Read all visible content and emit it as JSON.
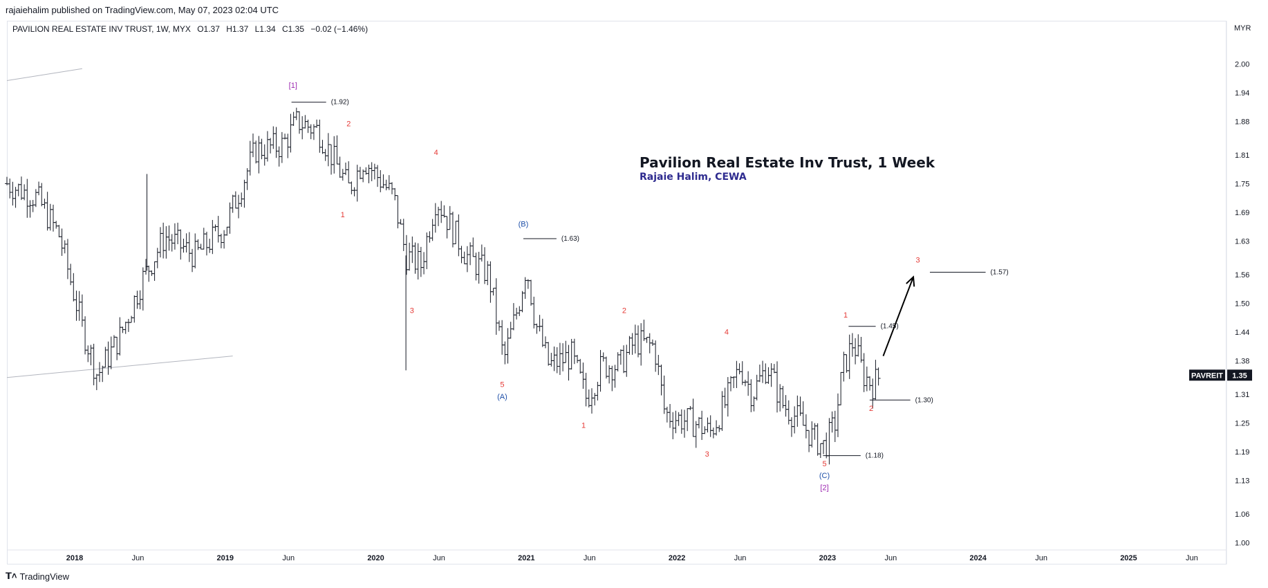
{
  "header": {
    "publish_line": "rajaiehalim published on TradingView.com, May 07, 2023 02:04 UTC"
  },
  "symbol_bar": {
    "name": "PAVILION REAL ESTATE INV TRUST, 1W, MYX",
    "open": "O1.37",
    "high": "H1.37",
    "low": "L1.34",
    "close": "C1.35",
    "change": "−0.02 (−1.46%)"
  },
  "currency": "MYR",
  "footer": {
    "brand": "TradingView",
    "logo_icon": "tradingview-logo-icon"
  },
  "chart_data": {
    "type": "ohlc",
    "title": "Pavilion Real Estate Inv Trust, 1 Week",
    "subtitle": "Rajaie Halim, CEWA",
    "colors": {
      "bars": "#131722",
      "title": "#131722",
      "subtitle": "#2e2b8f",
      "wave_red": "#e53935",
      "wave_blue": "#1e4fa8",
      "wave_purple": "#9c27b0",
      "price_tag_bg": "#131722",
      "trendline": "#b2b5be"
    },
    "y_axis": {
      "ticks": [
        "2.00",
        "1.94",
        "1.88",
        "1.81",
        "1.75",
        "1.69",
        "1.63",
        "1.56",
        "1.50",
        "1.44",
        "1.38",
        "1.31",
        "1.25",
        "1.19",
        "1.13",
        "1.06",
        "1.00"
      ],
      "range": [
        0.985,
        2.09
      ],
      "position": "right"
    },
    "x_axis": {
      "ticks": [
        {
          "label": "2018",
          "t": 2018.0,
          "bold": true
        },
        {
          "label": "Jun",
          "t": 2018.42,
          "bold": false
        },
        {
          "label": "2019",
          "t": 2019.0,
          "bold": true
        },
        {
          "label": "Jun",
          "t": 2019.42,
          "bold": false
        },
        {
          "label": "2020",
          "t": 2020.0,
          "bold": true
        },
        {
          "label": "Jun",
          "t": 2020.42,
          "bold": false
        },
        {
          "label": "2021",
          "t": 2021.0,
          "bold": true
        },
        {
          "label": "Jun",
          "t": 2021.42,
          "bold": false
        },
        {
          "label": "2022",
          "t": 2022.0,
          "bold": true
        },
        {
          "label": "Jun",
          "t": 2022.42,
          "bold": false
        },
        {
          "label": "2023",
          "t": 2023.0,
          "bold": true
        },
        {
          "label": "Jun",
          "t": 2023.42,
          "bold": false
        },
        {
          "label": "2024",
          "t": 2024.0,
          "bold": true
        },
        {
          "label": "Jun",
          "t": 2024.42,
          "bold": false
        },
        {
          "label": "2025",
          "t": 2025.0,
          "bold": true
        },
        {
          "label": "Jun",
          "t": 2025.42,
          "bold": false
        }
      ],
      "range": [
        2017.55,
        2025.65
      ]
    },
    "price_tag": {
      "symbol": "PAVREIT",
      "value": "1.35",
      "price": 1.35
    },
    "anchors": [
      {
        "t": 2017.55,
        "p": 1.75
      },
      {
        "t": 2017.75,
        "p": 1.72
      },
      {
        "t": 2017.9,
        "p": 1.64
      },
      {
        "t": 2018.05,
        "p": 1.45
      },
      {
        "t": 2018.15,
        "p": 1.35
      },
      {
        "t": 2018.3,
        "p": 1.43
      },
      {
        "t": 2018.45,
        "p": 1.55
      },
      {
        "t": 2018.6,
        "p": 1.64
      },
      {
        "t": 2018.8,
        "p": 1.6
      },
      {
        "t": 2019.0,
        "p": 1.66
      },
      {
        "t": 2019.2,
        "p": 1.82
      },
      {
        "t": 2019.38,
        "p": 1.83
      },
      {
        "t": 2019.48,
        "p": 1.88
      },
      {
        "t": 2019.62,
        "p": 1.86
      },
      {
        "t": 2019.72,
        "p": 1.8
      },
      {
        "t": 2019.82,
        "p": 1.74
      },
      {
        "t": 2019.92,
        "p": 1.8
      },
      {
        "t": 2020.05,
        "p": 1.75
      },
      {
        "t": 2020.12,
        "p": 1.72
      },
      {
        "t": 2020.2,
        "p": 1.6
      },
      {
        "t": 2020.3,
        "p": 1.58
      },
      {
        "t": 2020.4,
        "p": 1.72
      },
      {
        "t": 2020.5,
        "p": 1.66
      },
      {
        "t": 2020.6,
        "p": 1.6
      },
      {
        "t": 2020.75,
        "p": 1.56
      },
      {
        "t": 2020.85,
        "p": 1.38
      },
      {
        "t": 2020.95,
        "p": 1.5
      },
      {
        "t": 2021.0,
        "p": 1.58
      },
      {
        "t": 2021.06,
        "p": 1.46
      },
      {
        "t": 2021.15,
        "p": 1.37
      },
      {
        "t": 2021.3,
        "p": 1.39
      },
      {
        "t": 2021.4,
        "p": 1.3
      },
      {
        "t": 2021.5,
        "p": 1.37
      },
      {
        "t": 2021.62,
        "p": 1.37
      },
      {
        "t": 2021.72,
        "p": 1.42
      },
      {
        "t": 2021.85,
        "p": 1.41
      },
      {
        "t": 2021.92,
        "p": 1.27
      },
      {
        "t": 2022.0,
        "p": 1.26
      },
      {
        "t": 2022.12,
        "p": 1.25
      },
      {
        "t": 2022.22,
        "p": 1.23
      },
      {
        "t": 2022.32,
        "p": 1.29
      },
      {
        "t": 2022.42,
        "p": 1.37
      },
      {
        "t": 2022.5,
        "p": 1.31
      },
      {
        "t": 2022.6,
        "p": 1.37
      },
      {
        "t": 2022.7,
        "p": 1.29
      },
      {
        "t": 2022.8,
        "p": 1.26
      },
      {
        "t": 2022.9,
        "p": 1.22
      },
      {
        "t": 2022.98,
        "p": 1.2
      },
      {
        "t": 2023.05,
        "p": 1.25
      },
      {
        "t": 2023.1,
        "p": 1.36
      },
      {
        "t": 2023.17,
        "p": 1.42
      },
      {
        "t": 2023.24,
        "p": 1.35
      },
      {
        "t": 2023.3,
        "p": 1.33
      },
      {
        "t": 2023.35,
        "p": 1.35
      }
    ],
    "spikes": [
      {
        "t": 2018.48,
        "p": 1.77
      },
      {
        "t": 2020.2,
        "p": 1.36
      }
    ],
    "levels": [
      {
        "label": "(1.92)",
        "p": 1.92,
        "t1": 2019.44,
        "t2": 2019.67
      },
      {
        "label": "(1.63)",
        "p": 1.635,
        "t1": 2020.98,
        "t2": 2021.2
      },
      {
        "label": "(1.57)",
        "p": 1.565,
        "t1": 2023.68,
        "t2": 2024.05
      },
      {
        "label": "(1.45)",
        "p": 1.452,
        "t1": 2023.14,
        "t2": 2023.32
      },
      {
        "label": "(1.30)",
        "p": 1.298,
        "t1": 2023.28,
        "t2": 2023.55
      },
      {
        "label": "(1.18)",
        "p": 1.182,
        "t1": 2022.97,
        "t2": 2023.22
      }
    ],
    "waves": [
      {
        "text": "[1]",
        "t": 2019.45,
        "p": 1.95,
        "color": "purple"
      },
      {
        "text": "2",
        "t": 2019.82,
        "p": 1.87,
        "color": "red"
      },
      {
        "text": "1",
        "t": 2019.78,
        "p": 1.68,
        "color": "red"
      },
      {
        "text": "4",
        "t": 2020.4,
        "p": 1.81,
        "color": "red"
      },
      {
        "text": "3",
        "t": 2020.24,
        "p": 1.48,
        "color": "red"
      },
      {
        "text": "(B)",
        "t": 2020.98,
        "p": 1.66,
        "color": "blue"
      },
      {
        "text": "5",
        "t": 2020.84,
        "p": 1.325,
        "color": "red"
      },
      {
        "text": "(A)",
        "t": 2020.84,
        "p": 1.3,
        "color": "blue"
      },
      {
        "text": "2",
        "t": 2021.65,
        "p": 1.48,
        "color": "red"
      },
      {
        "text": "1",
        "t": 2021.38,
        "p": 1.24,
        "color": "red"
      },
      {
        "text": "4",
        "t": 2022.33,
        "p": 1.435,
        "color": "red"
      },
      {
        "text": "3",
        "t": 2022.2,
        "p": 1.18,
        "color": "red"
      },
      {
        "text": "5",
        "t": 2022.98,
        "p": 1.16,
        "color": "red"
      },
      {
        "text": "(C)",
        "t": 2022.98,
        "p": 1.135,
        "color": "blue"
      },
      {
        "text": "[2]",
        "t": 2022.98,
        "p": 1.11,
        "color": "purple"
      },
      {
        "text": "1",
        "t": 2023.12,
        "p": 1.47,
        "color": "red"
      },
      {
        "text": "2",
        "t": 2023.29,
        "p": 1.275,
        "color": "red"
      },
      {
        "text": "3",
        "t": 2023.6,
        "p": 1.585,
        "color": "red"
      }
    ],
    "arrow": {
      "from": {
        "t": 2023.37,
        "p": 1.39
      },
      "to": {
        "t": 2023.57,
        "p": 1.555
      }
    },
    "trendlines": [
      {
        "t1": 2017.55,
        "p1": 1.965,
        "t2": 2018.05,
        "p2": 1.99
      },
      {
        "t1": 2017.55,
        "p1": 1.345,
        "t2": 2019.05,
        "p2": 1.39
      }
    ],
    "grid": false,
    "legend": "none"
  }
}
